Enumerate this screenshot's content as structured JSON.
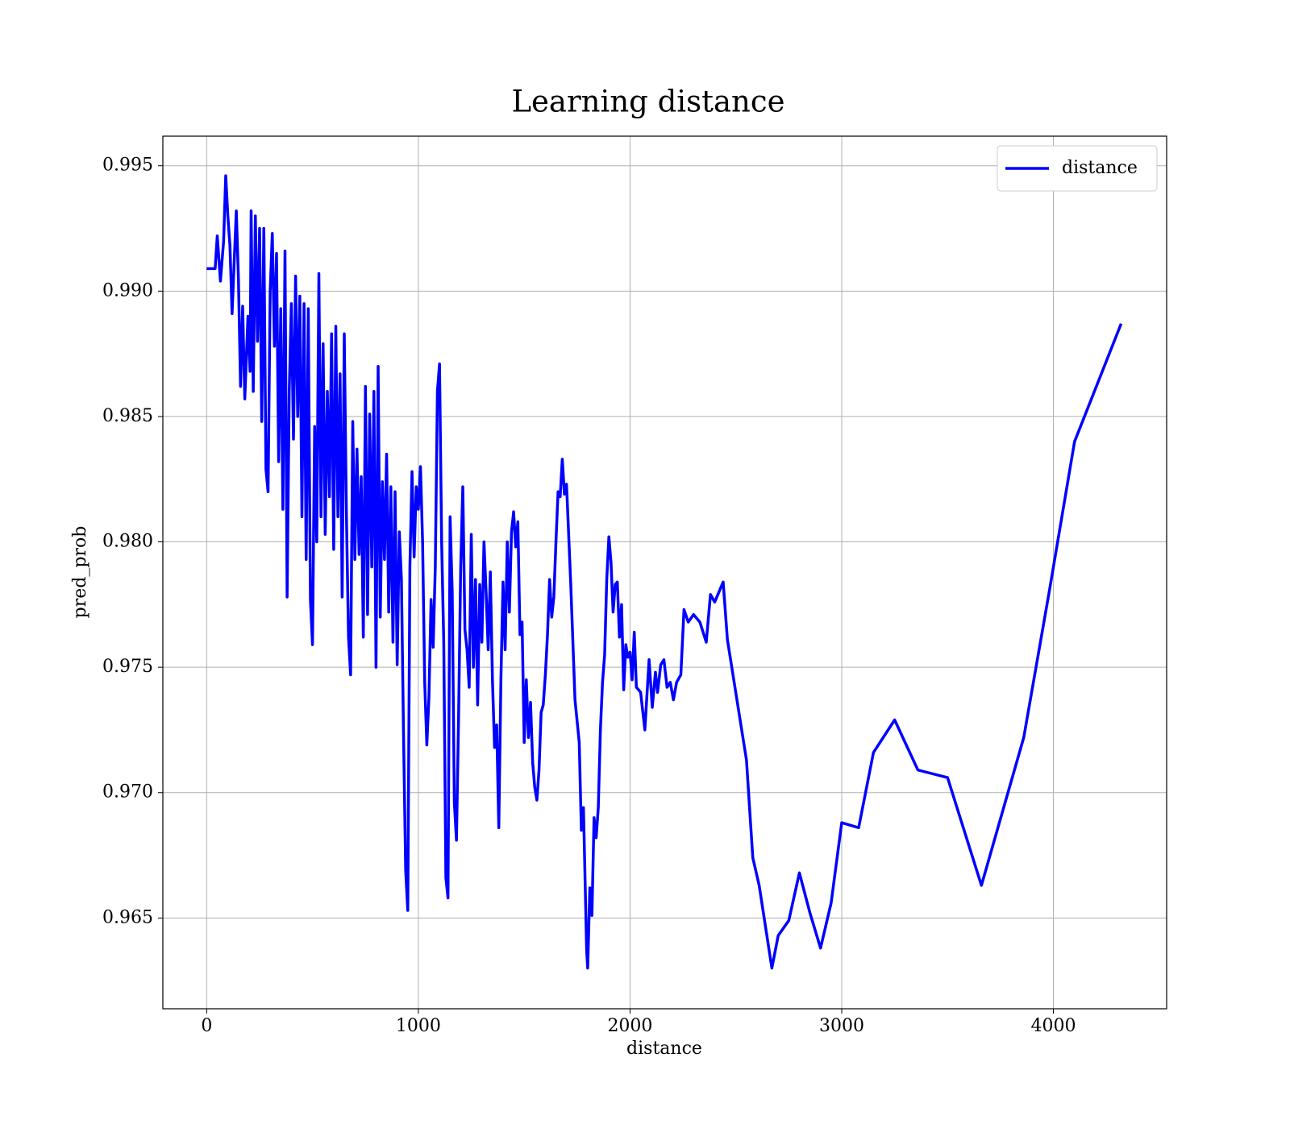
{
  "chart_data": {
    "type": "line",
    "title": "Learning distance",
    "xlabel": "distance",
    "ylabel": "pred_prob",
    "x": [
      0,
      40,
      50,
      65,
      80,
      90,
      100,
      110,
      120,
      140,
      150,
      160,
      170,
      180,
      195,
      205,
      210,
      220,
      230,
      240,
      250,
      260,
      270,
      280,
      290,
      300,
      310,
      320,
      330,
      340,
      350,
      360,
      370,
      380,
      390,
      400,
      410,
      420,
      430,
      440,
      450,
      460,
      470,
      480,
      490,
      500,
      510,
      520,
      530,
      540,
      550,
      560,
      570,
      580,
      590,
      600,
      610,
      620,
      630,
      640,
      650,
      660,
      670,
      680,
      690,
      700,
      710,
      720,
      730,
      740,
      750,
      760,
      770,
      780,
      790,
      800,
      810,
      820,
      830,
      840,
      850,
      860,
      870,
      880,
      890,
      900,
      910,
      920,
      930,
      940,
      950,
      960,
      970,
      980,
      990,
      1000,
      1010,
      1020,
      1030,
      1040,
      1050,
      1060,
      1070,
      1080,
      1090,
      1100,
      1110,
      1120,
      1130,
      1140,
      1150,
      1160,
      1170,
      1180,
      1190,
      1200,
      1210,
      1220,
      1230,
      1240,
      1250,
      1260,
      1270,
      1280,
      1290,
      1300,
      1310,
      1320,
      1330,
      1340,
      1350,
      1360,
      1370,
      1380,
      1390,
      1400,
      1410,
      1420,
      1430,
      1440,
      1450,
      1460,
      1470,
      1480,
      1490,
      1500,
      1510,
      1520,
      1530,
      1540,
      1550,
      1560,
      1570,
      1580,
      1590,
      1600,
      1610,
      1620,
      1630,
      1640,
      1650,
      1660,
      1670,
      1680,
      1690,
      1700,
      1720,
      1740,
      1760,
      1770,
      1780,
      1795,
      1800,
      1810,
      1820,
      1830,
      1840,
      1850,
      1860,
      1870,
      1880,
      1890,
      1900,
      1910,
      1920,
      1930,
      1940,
      1950,
      1960,
      1970,
      1980,
      1990,
      2000,
      2010,
      2020,
      2030,
      2050,
      2070,
      2090,
      2105,
      2120,
      2130,
      2145,
      2160,
      2175,
      2190,
      2205,
      2220,
      2240,
      2255,
      2275,
      2300,
      2330,
      2360,
      2380,
      2400,
      2440,
      2460,
      2520,
      2550,
      2580,
      2610,
      2670,
      2700,
      2750,
      2800,
      2850,
      2900,
      2950,
      3000,
      3080,
      3150,
      3250,
      3360,
      3500,
      3660,
      3860,
      3980,
      4100,
      4320
    ],
    "series": [
      {
        "name": "distance",
        "color": "#0000ff",
        "values": [
          0.9909,
          0.9909,
          0.9922,
          0.9904,
          0.992,
          0.9946,
          0.993,
          0.9918,
          0.9891,
          0.9932,
          0.9905,
          0.9862,
          0.9894,
          0.9857,
          0.989,
          0.9868,
          0.9932,
          0.986,
          0.993,
          0.988,
          0.9925,
          0.9848,
          0.9925,
          0.9829,
          0.982,
          0.99,
          0.9923,
          0.9878,
          0.9915,
          0.9832,
          0.9893,
          0.9813,
          0.9916,
          0.9778,
          0.986,
          0.9895,
          0.9841,
          0.9906,
          0.985,
          0.9898,
          0.981,
          0.9895,
          0.9793,
          0.9893,
          0.9777,
          0.9759,
          0.9846,
          0.98,
          0.9907,
          0.981,
          0.9879,
          0.9803,
          0.986,
          0.9818,
          0.9883,
          0.9797,
          0.9886,
          0.981,
          0.9867,
          0.9778,
          0.9883,
          0.9812,
          0.9762,
          0.9747,
          0.9848,
          0.9793,
          0.9837,
          0.9795,
          0.9826,
          0.9762,
          0.9862,
          0.9771,
          0.9851,
          0.979,
          0.986,
          0.975,
          0.987,
          0.977,
          0.9824,
          0.9793,
          0.9835,
          0.9772,
          0.9822,
          0.976,
          0.982,
          0.9751,
          0.9804,
          0.9785,
          0.9723,
          0.9669,
          0.9653,
          0.979,
          0.9828,
          0.9794,
          0.9822,
          0.9813,
          0.983,
          0.98,
          0.9744,
          0.9719,
          0.9738,
          0.9777,
          0.9758,
          0.979,
          0.986,
          0.9871,
          0.98,
          0.976,
          0.9666,
          0.9658,
          0.981,
          0.978,
          0.9696,
          0.9681,
          0.973,
          0.979,
          0.9822,
          0.9765,
          0.9757,
          0.9742,
          0.9803,
          0.975,
          0.9785,
          0.9735,
          0.9783,
          0.976,
          0.98,
          0.978,
          0.9757,
          0.9788,
          0.9745,
          0.9718,
          0.9727,
          0.9686,
          0.9745,
          0.9784,
          0.9757,
          0.98,
          0.9772,
          0.9804,
          0.9812,
          0.9798,
          0.9808,
          0.9763,
          0.9768,
          0.972,
          0.9745,
          0.9722,
          0.9736,
          0.9712,
          0.9702,
          0.9697,
          0.9709,
          0.9732,
          0.9735,
          0.9747,
          0.9763,
          0.9785,
          0.977,
          0.9778,
          0.98,
          0.982,
          0.9818,
          0.9833,
          0.9819,
          0.9823,
          0.9783,
          0.9737,
          0.972,
          0.9685,
          0.9694,
          0.9637,
          0.963,
          0.9662,
          0.9651,
          0.969,
          0.9682,
          0.9694,
          0.9725,
          0.9744,
          0.9755,
          0.9785,
          0.9802,
          0.9792,
          0.9772,
          0.9783,
          0.9784,
          0.9762,
          0.9775,
          0.9741,
          0.9759,
          0.9754,
          0.9756,
          0.9745,
          0.9764,
          0.9742,
          0.974,
          0.9725,
          0.9753,
          0.9734,
          0.9748,
          0.974,
          0.9751,
          0.9753,
          0.9742,
          0.9744,
          0.9737,
          0.9744,
          0.9747,
          0.9773,
          0.9768,
          0.9771,
          0.9768,
          0.976,
          0.9779,
          0.9776,
          0.9784,
          0.9761,
          0.9729,
          0.9713,
          0.9674,
          0.9663,
          0.963,
          0.9643,
          0.9649,
          0.9668,
          0.9652,
          0.9638,
          0.9656,
          0.9688,
          0.9686,
          0.9716,
          0.9729,
          0.9709,
          0.9706,
          0.9663,
          0.9722,
          0.978,
          0.984,
          0.9887
        ]
      }
    ],
    "xlim": [
      -207,
      4535
    ],
    "ylim": [
      0.96138,
      0.99618
    ],
    "xticks": [
      0,
      1000,
      2000,
      3000,
      4000
    ],
    "yticks": [
      {
        "value": 0.965,
        "label": "0.965"
      },
      {
        "value": 0.97,
        "label": "0.970"
      },
      {
        "value": 0.975,
        "label": "0.975"
      },
      {
        "value": 0.98,
        "label": "0.980"
      },
      {
        "value": 0.985,
        "label": "0.985"
      },
      {
        "value": 0.99,
        "label": "0.990"
      },
      {
        "value": 0.995,
        "label": "0.995"
      }
    ],
    "grid": true,
    "legend": "upper right"
  }
}
